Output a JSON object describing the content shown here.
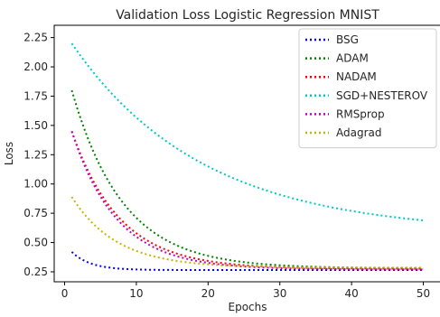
{
  "chart_data": {
    "type": "line",
    "title": "Validation Loss Logistic Regression MNIST",
    "xlabel": "Epochs",
    "ylabel": "Loss",
    "xlim": [
      -1.45,
      52.45
    ],
    "ylim": [
      0.165,
      2.355
    ],
    "xticks": [
      0,
      10,
      20,
      30,
      40,
      50
    ],
    "yticks": [
      0.25,
      0.5,
      0.75,
      1.0,
      1.25,
      1.5,
      1.75,
      2.0,
      2.25
    ],
    "ytick_labels": [
      "0.25",
      "0.50",
      "0.75",
      "1.00",
      "1.25",
      "1.50",
      "1.75",
      "2.00",
      "2.25"
    ],
    "grid": false,
    "legend_position": "top-right",
    "line_style": "dotted",
    "series": [
      {
        "name": "BSG",
        "color": "#0000ff",
        "start": 0.42,
        "end": 0.265,
        "rate": 0.38
      },
      {
        "name": "ADAM",
        "color": "#008000",
        "start": 1.8,
        "end": 0.28,
        "rate": 0.14
      },
      {
        "name": "NADAM",
        "color": "#ff0000",
        "start": 1.45,
        "end": 0.275,
        "rate": 0.15
      },
      {
        "name": "SGD+NESTEROV",
        "color": "#00c8c8",
        "start": 2.2,
        "end": 0.58,
        "rate": 0.055
      },
      {
        "name": "RMSprop",
        "color": "#c000c0",
        "start": 1.45,
        "end": 0.27,
        "rate": 0.16
      },
      {
        "name": "Adagrad",
        "color": "#c8b400",
        "start": 0.89,
        "end": 0.285,
        "rate": 0.16
      }
    ]
  }
}
